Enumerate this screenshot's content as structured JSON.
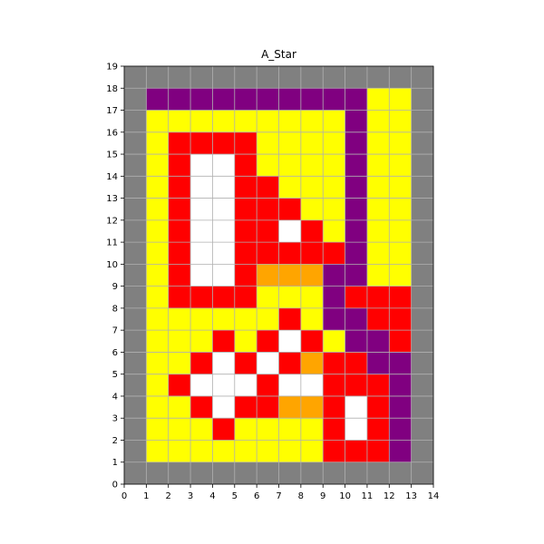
{
  "chart_data": {
    "type": "heatmap",
    "title": "A_Star",
    "xlabel": "",
    "ylabel": "",
    "xlim": [
      0,
      14
    ],
    "ylim": [
      0,
      19
    ],
    "xticks": [
      "0",
      "1",
      "2",
      "3",
      "4",
      "5",
      "6",
      "7",
      "8",
      "9",
      "10",
      "11",
      "12",
      "13",
      "14"
    ],
    "yticks": [
      "0",
      "1",
      "2",
      "3",
      "4",
      "5",
      "6",
      "7",
      "8",
      "9",
      "10",
      "11",
      "12",
      "13",
      "14",
      "15",
      "16",
      "17",
      "18",
      "19"
    ],
    "grid": true,
    "legend": "none",
    "colors": {
      "G": "#808080",
      "Y": "#ffff00",
      "R": "#ff0000",
      "W": "#ffffff",
      "P": "#800080",
      "O": "#ffa500"
    },
    "color_meaning": {
      "G": "gray",
      "Y": "yellow",
      "R": "red",
      "W": "white",
      "P": "purple",
      "O": "orange"
    },
    "rows_top_to_bottom": [
      "GGGGGGGGGGGGGG",
      "GPPPPPPPPPPYYG",
      "GYYYYYYYYYPYYG",
      "GYRRRRYYYYPYYG",
      "GYRWWRYYYYPYYG",
      "GYRWWRRYYYPYYG",
      "GYRWWRRRYYPYYG",
      "GYRWWRRWRYPYYG",
      "GYRWWRRRRRPYYG",
      "GYRWWROOOPPYYG",
      "GYRRRRYYYPRRRG",
      "GYYYYYYRYPPRRG",
      "GYYYRYRWRYPPRG",
      "GYYRWRWRORRPPG",
      "GYRWWWRWWRRRPG",
      "GYYRWRROORWRPG",
      "GYYYRYYYYRWRPG",
      "GYYYYYYYYRRRPG",
      "GGGGGGGGGGGGGG"
    ]
  }
}
